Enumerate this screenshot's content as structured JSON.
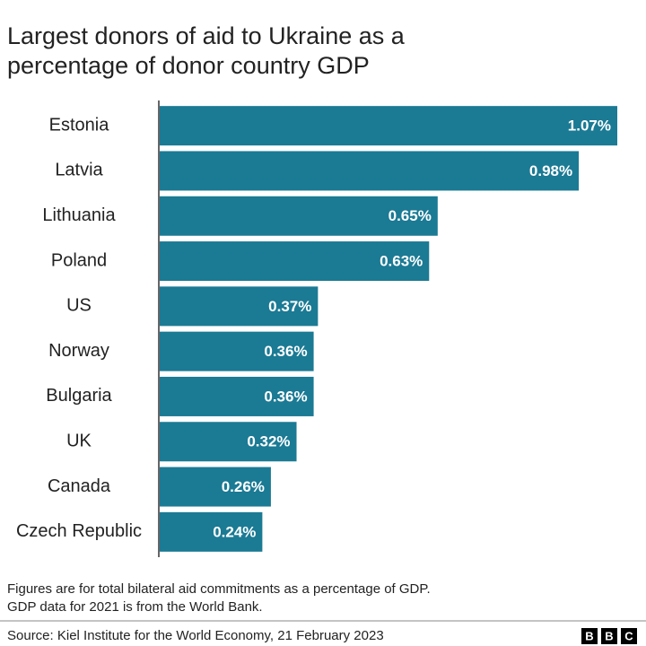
{
  "chart_data": {
    "type": "bar",
    "orientation": "horizontal",
    "title": [
      "Largest donors of aid to Ukraine as a",
      "percentage of donor country GDP"
    ],
    "categories": [
      "Estonia",
      "Latvia",
      "Lithuania",
      "Poland",
      "US",
      "Norway",
      "Bulgaria",
      "UK",
      "Canada",
      "Czech Republic"
    ],
    "values": [
      1.07,
      0.98,
      0.65,
      0.63,
      0.37,
      0.36,
      0.36,
      0.32,
      0.26,
      0.24
    ],
    "value_labels": [
      "1.07%",
      "0.98%",
      "0.65%",
      "0.63%",
      "0.37%",
      "0.36%",
      "0.36%",
      "0.32%",
      "0.26%",
      "0.24%"
    ],
    "color": "#1b7a94",
    "notes": [
      "Figures are for total bilateral aid commitments as a percentage of GDP.",
      "GDP data for 2021 is from the World Bank."
    ],
    "source": "Source: Kiel Institute for the World Economy, 21 February 2023",
    "logo": [
      "B",
      "B",
      "C"
    ]
  }
}
